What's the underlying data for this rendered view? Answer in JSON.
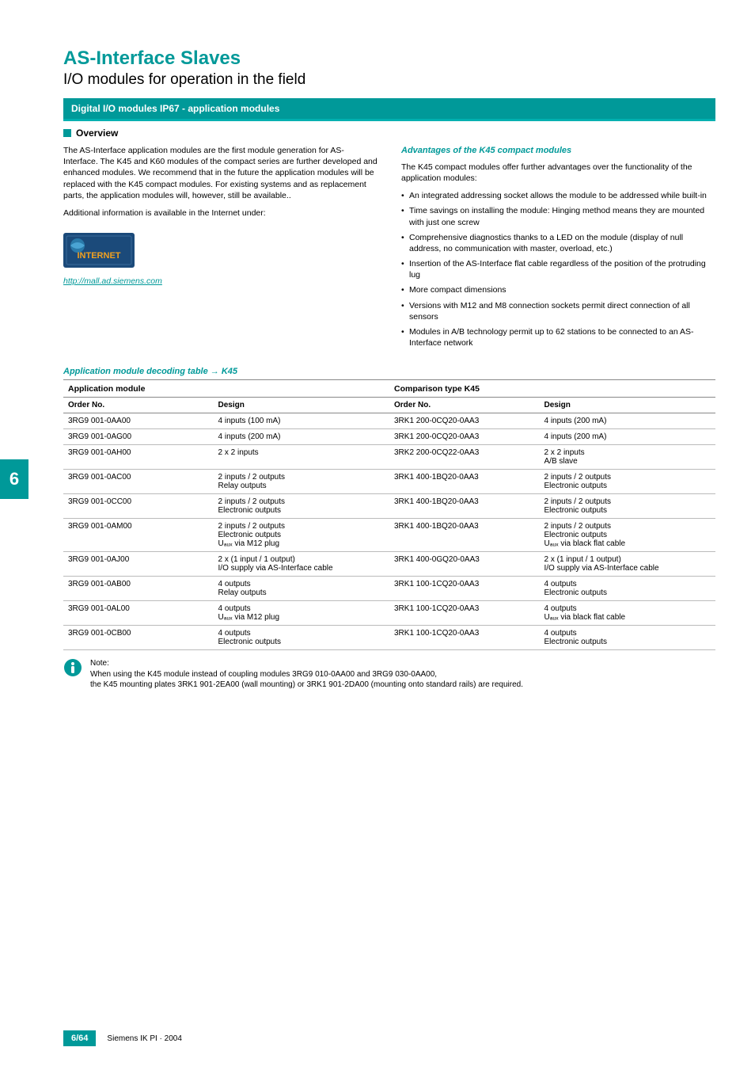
{
  "header": {
    "title_main": "AS-Interface Slaves",
    "title_sub": "I/O modules for operation in the field",
    "blue_bar": "Digital I/O modules IP67 - application modules"
  },
  "overview": {
    "heading": "Overview",
    "para1": "The AS-Interface application modules are the first module generation for AS-Interface. The K45 and K60 modules of the compact series are further developed and enhanced modules. We recommend that in the future the application modules will be replaced with the K45 compact modules. For existing systems and as replacement parts, the application modules will, however, still be available..",
    "para2": "Additional information is available in the Internet under:",
    "link_text": "http://mall.ad.siemens.com"
  },
  "advantages": {
    "title": "Advantages of the K45 compact modules",
    "intro": "The K45 compact modules offer further advantages over the functionality of the application modules:",
    "items": [
      "An integrated addressing socket allows the module to be addressed while built-in",
      "Time savings on installing the module: Hinging method means they are mounted with just one screw",
      "Comprehensive diagnostics thanks to a LED on the module (display of null address, no communication with master, overload, etc.)",
      "Insertion of the AS-Interface flat cable regardless of the position of the protruding lug",
      "More compact dimensions",
      "Versions with M12 and M8 connection sockets permit direct connection of all sensors",
      "Modules in A/B technology permit up to 62 stations to be connected to an AS-Interface network"
    ]
  },
  "table": {
    "title": "Application module decoding table → K45",
    "group_headers": [
      "Application module",
      "Comparison type K45"
    ],
    "sub_headers": [
      "Order No.",
      "Design",
      "Order No.",
      "Design"
    ],
    "rows": [
      {
        "a_order": "3RG9 001-0AA00",
        "a_design": [
          "4 inputs (100 mA)"
        ],
        "k_order": "3RK1 200-0CQ20-0AA3",
        "k_design": [
          "4 inputs (200 mA)"
        ]
      },
      {
        "a_order": "3RG9 001-0AG00",
        "a_design": [
          "4 inputs (200 mA)"
        ],
        "k_order": "3RK1 200-0CQ20-0AA3",
        "k_design": [
          "4 inputs (200 mA)"
        ]
      },
      {
        "a_order": "3RG9 001-0AH00",
        "a_design": [
          "2 x 2 inputs"
        ],
        "k_order": "3RK2 200-0CQ22-0AA3",
        "k_design": [
          "2 x 2 inputs",
          "A/B slave"
        ]
      },
      {
        "a_order": "3RG9 001-0AC00",
        "a_design": [
          "2 inputs / 2 outputs",
          "Relay outputs"
        ],
        "k_order": "3RK1 400-1BQ20-0AA3",
        "k_design": [
          "2 inputs / 2 outputs",
          "Electronic outputs"
        ]
      },
      {
        "a_order": "3RG9 001-0CC00",
        "a_design": [
          "2 inputs / 2 outputs",
          "Electronic outputs"
        ],
        "k_order": "3RK1 400-1BQ20-0AA3",
        "k_design": [
          "2 inputs / 2 outputs",
          "Electronic outputs"
        ]
      },
      {
        "a_order": "3RG9 001-0AM00",
        "a_design": [
          "2 inputs / 2 outputs",
          "Electronic outputs",
          "Uₐᵤₓ via M12 plug"
        ],
        "k_order": "3RK1 400-1BQ20-0AA3",
        "k_design": [
          "2 inputs / 2 outputs",
          "Electronic outputs",
          "Uₐᵤₓ via black flat cable"
        ]
      },
      {
        "a_order": "3RG9 001-0AJ00",
        "a_design": [
          "2 x (1 input / 1 output)",
          "I/O supply via AS-Interface cable"
        ],
        "k_order": "3RK1 400-0GQ20-0AA3",
        "k_design": [
          "2 x (1 input / 1 output)",
          "I/O supply via AS-Interface cable"
        ]
      },
      {
        "a_order": "3RG9 001-0AB00",
        "a_design": [
          "4 outputs",
          "Relay outputs"
        ],
        "k_order": "3RK1 100-1CQ20-0AA3",
        "k_design": [
          "4 outputs",
          "Electronic outputs"
        ]
      },
      {
        "a_order": "3RG9 001-0AL00",
        "a_design": [
          "4 outputs",
          "Uₐᵤₓ via M12 plug"
        ],
        "k_order": "3RK1 100-1CQ20-0AA3",
        "k_design": [
          "4 outputs",
          "Uₐᵤₓ via black flat cable"
        ]
      },
      {
        "a_order": "3RG9 001-0CB00",
        "a_design": [
          "4 outputs",
          "Electronic outputs"
        ],
        "k_order": "3RK1 100-1CQ20-0AA3",
        "k_design": [
          "4 outputs",
          "Electronic outputs"
        ]
      }
    ]
  },
  "note": {
    "label": "Note:",
    "line1": "When using the K45 module instead of coupling modules 3RG9 010-0AA00 and 3RG9 030-0AA00,",
    "line2": "the K45 mounting plates 3RK1 901-2EA00 (wall mounting) or 3RK1 901-2DA00 (mounting onto standard rails) are required."
  },
  "side_tab": "6",
  "footer": {
    "page_num": "6/64",
    "text": "Siemens IK PI · 2004"
  },
  "colors": {
    "teal": "#009999",
    "border": "#bbbbbb"
  }
}
